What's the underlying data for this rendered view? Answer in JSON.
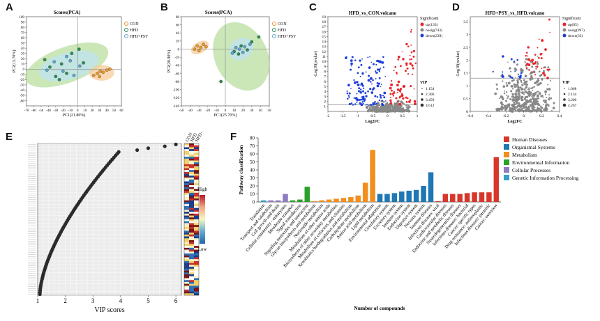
{
  "panels": {
    "A": {
      "letter": "A",
      "chart_data": {
        "type": "scatter",
        "title": "Scores(PCA)",
        "xlabel": "PC1(21.80%)",
        "ylabel": "PC2(13.70%)",
        "xlim": [
          -70,
          60
        ],
        "ylim": [
          -70,
          100
        ],
        "xticks": [
          -70,
          -60,
          -50,
          -40,
          -30,
          -20,
          -10,
          0,
          10,
          20,
          30,
          40,
          50,
          60
        ],
        "yticks": [
          -60,
          -50,
          -40,
          -30,
          -20,
          -10,
          0,
          10,
          20,
          30,
          40,
          50,
          60,
          70,
          80,
          90,
          100
        ],
        "legend": [
          "CON",
          "HFD",
          "HFD+PSY"
        ],
        "series": [
          {
            "name": "CON",
            "color": "#e8962c",
            "points": [
              [
                22,
                -12
              ],
              [
                27,
                -8
              ],
              [
                31,
                -4
              ],
              [
                35,
                -6
              ],
              [
                40,
                -2
              ],
              [
                44,
                0
              ],
              [
                30,
                -14
              ]
            ]
          },
          {
            "name": "HFD",
            "color": "#2e8b57",
            "points": [
              [
                -45,
                18
              ],
              [
                -38,
                4
              ],
              [
                -30,
                -14
              ],
              [
                -22,
                10
              ],
              [
                -15,
                -8
              ],
              [
                -8,
                30
              ],
              [
                2,
                38
              ],
              [
                8,
                12
              ],
              [
                -25,
                -20
              ]
            ]
          },
          {
            "name": "HFD+PSY",
            "color": "#5aa6c8",
            "points": [
              [
                -42,
                -2
              ],
              [
                -32,
                14
              ],
              [
                -20,
                -4
              ],
              [
                -10,
                16
              ],
              [
                -5,
                -12
              ],
              [
                3,
                6
              ],
              [
                -15,
                24
              ]
            ]
          }
        ],
        "ellipses": [
          {
            "name": "HFD",
            "cx": -15,
            "cy": 8,
            "rx": 60,
            "ry": 34,
            "angle": 20,
            "color": "#b9dfa0"
          },
          {
            "name": "HFD+PSY",
            "cx": -12,
            "cy": 6,
            "rx": 42,
            "ry": 26,
            "angle": 15,
            "color": "#bfe3f0"
          },
          {
            "name": "CON",
            "cx": 33,
            "cy": -7,
            "rx": 17,
            "ry": 15,
            "angle": 0,
            "color": "#f5cc9a"
          }
        ]
      }
    },
    "B": {
      "letter": "B",
      "chart_data": {
        "type": "scatter",
        "title": "Scores(PCA)",
        "xlabel": "PC1(25.70%)",
        "ylabel": "PC2(20.90%)",
        "xlim": [
          -50,
          50
        ],
        "ylim": [
          -140,
          80
        ],
        "xticks": [
          -50,
          -40,
          -30,
          -20,
          -10,
          0,
          10,
          20,
          30,
          40,
          50
        ],
        "yticks": [
          -140,
          -120,
          -100,
          -80,
          -60,
          -40,
          -20,
          0,
          20,
          40,
          60,
          80
        ],
        "legend": [
          "CON",
          "HFD",
          "HFD+PSY"
        ],
        "series": [
          {
            "name": "CON",
            "color": "#e8962c",
            "points": [
              [
                -35,
                0
              ],
              [
                -32,
                8
              ],
              [
                -28,
                4
              ],
              [
                -25,
                12
              ],
              [
                -22,
                6
              ],
              [
                -30,
                -4
              ]
            ]
          },
          {
            "name": "HFD",
            "color": "#2e8b57",
            "points": [
              [
                -5,
                -80
              ],
              [
                10,
                -6
              ],
              [
                18,
                8
              ],
              [
                25,
                -2
              ],
              [
                30,
                18
              ],
              [
                38,
                30
              ],
              [
                15,
                -12
              ]
            ]
          },
          {
            "name": "HFD+PSY",
            "color": "#5aa6c8",
            "points": [
              [
                8,
                -10
              ],
              [
                12,
                4
              ],
              [
                20,
                -8
              ],
              [
                28,
                12
              ],
              [
                16,
                0
              ],
              [
                22,
                6
              ]
            ]
          }
        ],
        "ellipses": [
          {
            "name": "HFD",
            "cx": 18,
            "cy": -18,
            "rx": 30,
            "ry": 88,
            "angle": 25,
            "color": "#b9dfa0"
          },
          {
            "name": "HFD+PSY",
            "cx": 18,
            "cy": 0,
            "rx": 15,
            "ry": 26,
            "angle": 30,
            "color": "#bfe3f0"
          },
          {
            "name": "CON",
            "cx": -29,
            "cy": 4,
            "rx": 11,
            "ry": 14,
            "angle": 30,
            "color": "#f5cc9a"
          }
        ]
      }
    },
    "C": {
      "letter": "C",
      "chart_data": {
        "type": "scatter",
        "title": "HFD_vs_CON.volcano",
        "xlabel": "Log2FC",
        "ylabel": "-Log10(pvalue)",
        "xlim": [
          -2,
          1
        ],
        "ylim": [
          0,
          19
        ],
        "xticks": [
          -2,
          -1.5,
          -1,
          -0.5,
          0,
          0.5,
          1
        ],
        "yticks": [
          1,
          2,
          3,
          4,
          5,
          6,
          7,
          8,
          9,
          10,
          11,
          12,
          13,
          14,
          15,
          16,
          17,
          18,
          19
        ],
        "legend_title": "Significant",
        "legend": [
          {
            "label": "up(133)",
            "color": "#e8262a"
          },
          {
            "label": "nosig(743)",
            "color": "#888888"
          },
          {
            "label": "down(239)",
            "color": "#1f3fd8"
          }
        ],
        "vip_title": "VIP",
        "vip_legend": [
          "1.154",
          "2.306",
          "3.459",
          "4.612"
        ],
        "threshold_y": 1.3,
        "counts": {
          "up": 133,
          "nosig": 743,
          "down": 239
        }
      }
    },
    "D": {
      "letter": "D",
      "chart_data": {
        "type": "scatter",
        "title": "HFD+PSY_vs_HFD.volcano",
        "xlabel": "Log2FC",
        "ylabel": "-Log10(pvalue)",
        "xlim": [
          -0.6,
          0.4
        ],
        "ylim": [
          0,
          3.7
        ],
        "xticks": [
          -0.6,
          -0.4,
          -0.2,
          0,
          0.2,
          0.4
        ],
        "yticks": [
          0,
          0.5,
          1,
          1.5,
          2,
          2.5,
          3,
          3.5
        ],
        "legend_title": "Significant",
        "legend": [
          {
            "label": "up(85)",
            "color": "#e8262a"
          },
          {
            "label": "nosig(997)",
            "color": "#888888"
          },
          {
            "label": "down(33)",
            "color": "#1f3fd8"
          }
        ],
        "vip_title": "VIP",
        "vip_legend": [
          "1.068",
          "2.134",
          "3.200",
          "4.267"
        ],
        "threshold_y": 1.3,
        "counts": {
          "up": 85,
          "nosig": 997,
          "down": 33
        }
      }
    },
    "E": {
      "letter": "E",
      "chart_data": {
        "type": "scatter",
        "xlabel": "VIP scores",
        "xlim": [
          1,
          6.2
        ],
        "xticks": [
          1,
          2,
          3,
          4,
          5,
          6
        ],
        "n_metabolites": 80,
        "heatmap_columns": [
          "CON",
          "HFD",
          "HFD+PSY"
        ],
        "colorbar": {
          "high": "High",
          "low": "Low"
        }
      }
    },
    "F": {
      "letter": "F",
      "chart_data": {
        "type": "bar",
        "xlabel": "Number of compounds",
        "ylabel": "Pathway classification",
        "ylim": [
          0,
          80
        ],
        "yticks": [
          0,
          10,
          20,
          30,
          40,
          50,
          60,
          70,
          80
        ],
        "legend": [
          {
            "label": "Human Diseases",
            "color": "#d7372b"
          },
          {
            "label": "Organismal Systems",
            "color": "#1f77b4"
          },
          {
            "label": "Metabolism",
            "color": "#f28e1c"
          },
          {
            "label": "Environmental Information",
            "color": "#2ca02c"
          },
          {
            "label": "Cellular Processes",
            "color": "#8e7cc3"
          },
          {
            "label": "Genetic Information Processing",
            "color": "#37a0c8"
          }
        ],
        "categories": [
          "Translation",
          "Transport and catabolism",
          "Cell growth and death",
          "Cellular community - eukaryotes",
          "Membrane transport",
          "Signal transduction",
          "Signaling molecules and interaction",
          "Glycan biosynthesis and metabolism",
          "Nucleotide metabolism",
          "Metabolism of other amino acids",
          "Biosynthesis of other secondary metabolites",
          "Metabolism of cofactors and vitamins",
          "Xenobiotics biodegradation and metabolism",
          "Carbohydrate metabolism",
          "Amino acid metabolism",
          "Lipid metabolism",
          "Environmental adaptation",
          "Circulatory system",
          "Excretory system",
          "Immune system",
          "Endocrine system",
          "Digestive system",
          "Nervous system",
          "Immune diseases",
          "Infectious diseases: viral",
          "Cardiovascular diseases",
          "Endocrine and metabolic diseases",
          "Neurodegenerative diseases",
          "Infectious diseases: bacterial",
          "Cancer: specific types",
          "Drug resistance: antineoplastic",
          "Infectious diseases: parasitic",
          "Cancer: overview"
        ],
        "values": [
          2,
          2,
          2,
          10,
          2,
          3,
          19,
          1,
          2,
          3,
          4,
          5,
          6,
          8,
          24,
          65,
          10,
          10,
          11,
          13,
          14,
          15,
          20,
          37,
          1,
          10,
          10,
          10,
          11,
          12,
          12,
          12,
          56
        ],
        "groups": [
          5,
          4,
          4,
          4,
          3,
          3,
          3,
          2,
          2,
          2,
          2,
          2,
          2,
          2,
          2,
          2,
          1,
          1,
          1,
          1,
          1,
          1,
          1,
          1,
          0,
          0,
          0,
          0,
          0,
          0,
          0,
          0,
          0
        ]
      }
    }
  }
}
